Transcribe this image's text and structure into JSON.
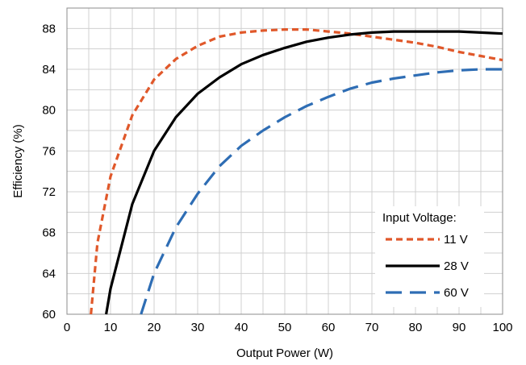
{
  "chart_data": {
    "type": "line",
    "xlabel": "Output Power (W)",
    "ylabel": "Efficiency (%)",
    "xlim": [
      0,
      100
    ],
    "ylim": [
      60,
      90
    ],
    "x_ticks": [
      0,
      10,
      20,
      30,
      40,
      50,
      60,
      70,
      80,
      90,
      100
    ],
    "y_ticks": [
      60,
      64,
      68,
      72,
      76,
      80,
      84,
      88
    ],
    "grid": true,
    "legend": {
      "title": "Input Voltage:",
      "placement": "bottom-right"
    },
    "series": [
      {
        "name": "11 V",
        "color": "#E0582A",
        "dash": "dash-short",
        "points": [
          [
            5.5,
            60
          ],
          [
            7,
            67
          ],
          [
            10,
            73.5
          ],
          [
            15,
            79.5
          ],
          [
            20,
            83
          ],
          [
            25,
            85
          ],
          [
            30,
            86.3
          ],
          [
            35,
            87.2
          ],
          [
            40,
            87.6
          ],
          [
            45,
            87.8
          ],
          [
            50,
            87.9
          ],
          [
            55,
            87.9
          ],
          [
            60,
            87.7
          ],
          [
            65,
            87.5
          ],
          [
            70,
            87.2
          ],
          [
            75,
            86.9
          ],
          [
            80,
            86.6
          ],
          [
            85,
            86.2
          ],
          [
            90,
            85.7
          ],
          [
            95,
            85.3
          ],
          [
            100,
            84.9
          ]
        ]
      },
      {
        "name": "28 V",
        "color": "#000000",
        "dash": "solid",
        "points": [
          [
            9,
            60
          ],
          [
            10,
            62.5
          ],
          [
            15,
            70.8
          ],
          [
            20,
            76
          ],
          [
            25,
            79.3
          ],
          [
            30,
            81.6
          ],
          [
            35,
            83.2
          ],
          [
            40,
            84.5
          ],
          [
            45,
            85.4
          ],
          [
            50,
            86.1
          ],
          [
            55,
            86.7
          ],
          [
            60,
            87.1
          ],
          [
            65,
            87.4
          ],
          [
            70,
            87.6
          ],
          [
            75,
            87.7
          ],
          [
            80,
            87.7
          ],
          [
            85,
            87.7
          ],
          [
            90,
            87.7
          ],
          [
            95,
            87.6
          ],
          [
            100,
            87.5
          ]
        ]
      },
      {
        "name": "60 V",
        "color": "#2E6DB4",
        "dash": "dash-long",
        "points": [
          [
            17,
            60
          ],
          [
            20,
            64
          ],
          [
            25,
            68.5
          ],
          [
            30,
            71.8
          ],
          [
            35,
            74.5
          ],
          [
            40,
            76.5
          ],
          [
            45,
            78
          ],
          [
            50,
            79.3
          ],
          [
            55,
            80.4
          ],
          [
            60,
            81.3
          ],
          [
            65,
            82.1
          ],
          [
            70,
            82.7
          ],
          [
            75,
            83.1
          ],
          [
            80,
            83.4
          ],
          [
            85,
            83.7
          ],
          [
            90,
            83.9
          ],
          [
            95,
            84
          ],
          [
            100,
            84
          ]
        ]
      }
    ]
  }
}
